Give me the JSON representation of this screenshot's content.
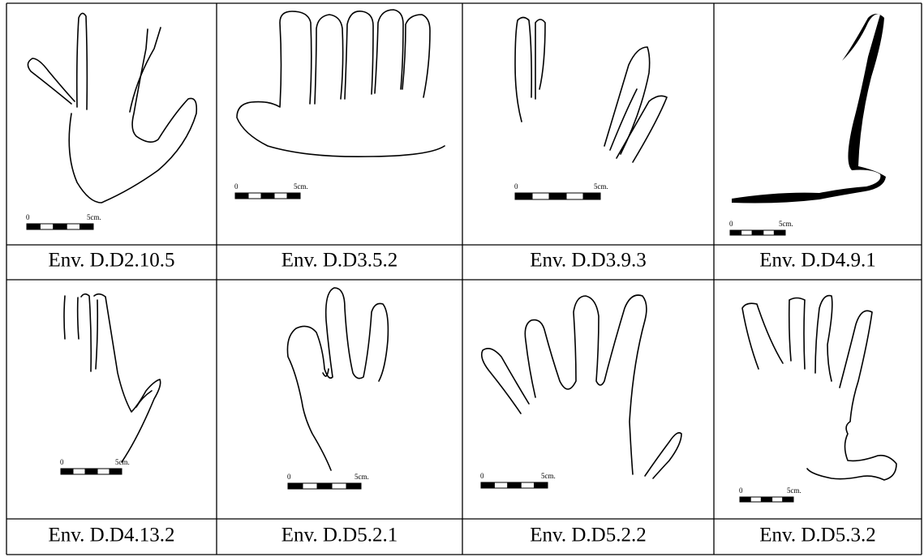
{
  "panels": [
    {
      "label": "Env. D.D2.10.5",
      "scale_start": "0",
      "scale_end": "5cm."
    },
    {
      "label": "Env. D.D3.5.2",
      "scale_start": "0",
      "scale_end": "5cm."
    },
    {
      "label": "Env. D.D3.9.3",
      "scale_start": "0",
      "scale_end": "5cm."
    },
    {
      "label": "Env. D.D4.9.1",
      "scale_start": "0",
      "scale_end": "5cm."
    },
    {
      "label": "Env. D.D4.13.2",
      "scale_start": "0",
      "scale_end": "5cm."
    },
    {
      "label": "Env. D.D5.2.1",
      "scale_start": "0",
      "scale_end": "5cm."
    },
    {
      "label": "Env. D.D5.2.2",
      "scale_start": "0",
      "scale_end": "5cm."
    },
    {
      "label": "Env. D.D5.3.2",
      "scale_start": "0",
      "scale_end": "5cm."
    }
  ]
}
